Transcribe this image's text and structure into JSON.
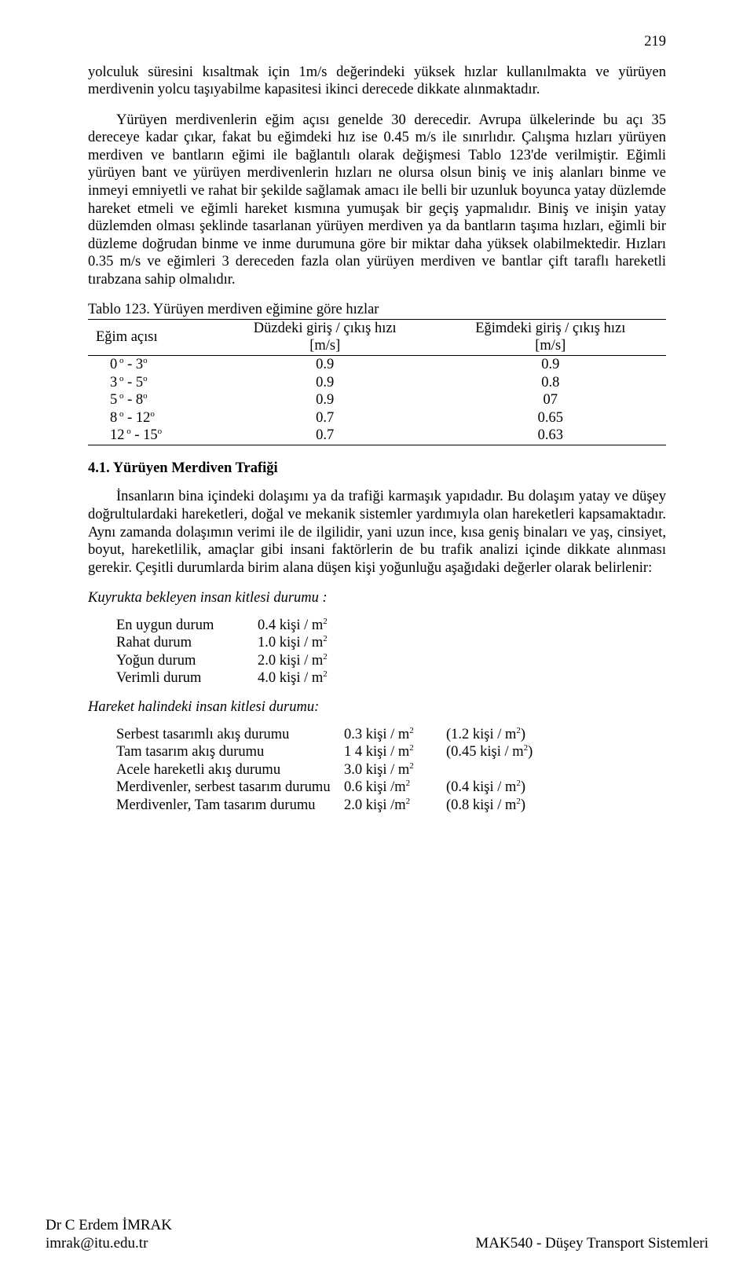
{
  "page_number": "219",
  "paragraphs": {
    "p1": "yolculuk süresini kısaltmak için 1m/s değerindeki yüksek hızlar kullanılmakta ve yürüyen merdivenin yolcu taşıyabilme kapasitesi ikinci derecede dikkate alınmaktadır.",
    "p2": "Yürüyen merdivenlerin eğim açısı genelde 30 derecedir. Avrupa ülkelerinde bu açı 35 dereceye kadar çıkar, fakat bu eğimdeki hız ise 0.45 m/s ile sınırlıdır. Çalışma hızları yürüyen merdiven ve bantların eğimi ile bağlantılı olarak değişmesi Tablo 123'de verilmiştir. Eğimli yürüyen bant ve yürüyen merdivenlerin hızları ne olursa olsun biniş ve iniş alanları binme ve inmeyi emniyetli ve rahat bir şekilde sağlamak amacı ile belli bir uzunluk boyunca yatay düzlemde hareket etmeli ve eğimli hareket kısmına yumuşak bir geçiş yapmalıdır. Biniş ve inişin yatay düzlemden olması şeklinde tasarlanan yürüyen merdiven ya da bantların taşıma hızları, eğimli bir düzleme doğrudan binme ve inme durumuna göre bir miktar daha yüksek olabilmektedir. Hızları 0.35 m/s ve eğimleri 3 dereceden fazla olan yürüyen merdiven ve bantlar çift taraflı hareketli tırabzana sahip olmalıdır."
  },
  "table": {
    "title": "Tablo 123. Yürüyen merdiven eğimine göre hızlar",
    "headers": {
      "c1": "Eğim açısı",
      "c2a": "Düzdeki giriş / çıkış hızı",
      "c2b": "[m/s]",
      "c3a": "Eğimdeki giriş / çıkış hızı",
      "c3b": "[m/s]"
    },
    "rows": [
      {
        "angle_a": "0",
        "angle_b": "3",
        "flat": "0.9",
        "incline": "0.9"
      },
      {
        "angle_a": "3",
        "angle_b": "5",
        "flat": "0.9",
        "incline": "0.8"
      },
      {
        "angle_a": "5",
        "angle_b": "8",
        "flat": "0.9",
        "incline": "07"
      },
      {
        "angle_a": "8",
        "angle_b": "12",
        "flat": "0.7",
        "incline": "0.65"
      },
      {
        "angle_a": "12",
        "angle_b": "15",
        "flat": "0.7",
        "incline": "0.63"
      }
    ]
  },
  "section": {
    "heading": "4.1. Yürüyen Merdiven Trafiği",
    "p1": "İnsanların bina içindeki dolaşımı ya da trafiği karmaşık yapıdadır. Bu dolaşım yatay ve düşey doğrultulardaki hareketleri, doğal ve mekanik sistemler yardımıyla olan hareketleri kapsamaktadır. Aynı zamanda dolaşımın verimi ile de ilgilidir, yani uzun ince, kısa geniş binaları ve yaş, cinsiyet, boyut, hareketlilik, amaçlar gibi insani faktörlerin de bu trafik analizi içinde dikkate alınması gerekir. Çeşitli durumlarda birim alana düşen kişi yoğunluğu aşağıdaki değerler olarak belirlenir:"
  },
  "queue": {
    "title": "Kuyrukta bekleyen insan kitlesi durumu :",
    "rows": [
      {
        "label": "En uygun durum",
        "value": "0.4 kişi / m"
      },
      {
        "label": "Rahat durum",
        "value": "1.0 kişi / m"
      },
      {
        "label": "Yoğun durum",
        "value": "2.0 kişi / m"
      },
      {
        "label": "Verimli durum",
        "value": "4.0 kişi / m"
      }
    ]
  },
  "moving": {
    "title": "Hareket halindeki insan kitlesi durumu:",
    "rows": [
      {
        "label": "Serbest tasarımlı akış durumu",
        "v1": "0.3 kişi / m",
        "v2": "(1.2  kişi / m",
        "v2_end": ")"
      },
      {
        "label": "Tam tasarım akış durumu",
        "v1": "1 4 kişi / m",
        "v2": "(0.45 kişi / m",
        "v2_end": ")"
      },
      {
        "label": "Acele hareketli akış durumu",
        "v1": "3.0 kişi / m",
        "v2": "",
        "v2_end": ""
      },
      {
        "label": "Merdivenler, serbest tasarım durumu",
        "v1": "0.6 kişi /m",
        "v2": "(0.4  kişi / m",
        "v2_end": ")"
      },
      {
        "label": "Merdivenler, Tam tasarım durumu",
        "v1": "2.0 kişi /m",
        "v2": "(0.8  kişi / m",
        "v2_end": ")"
      }
    ]
  },
  "footer": {
    "left1": "Dr C Erdem İMRAK",
    "left2": "imrak@itu.edu.tr",
    "right": "MAK540 - Düşey Transport Sistemleri"
  }
}
